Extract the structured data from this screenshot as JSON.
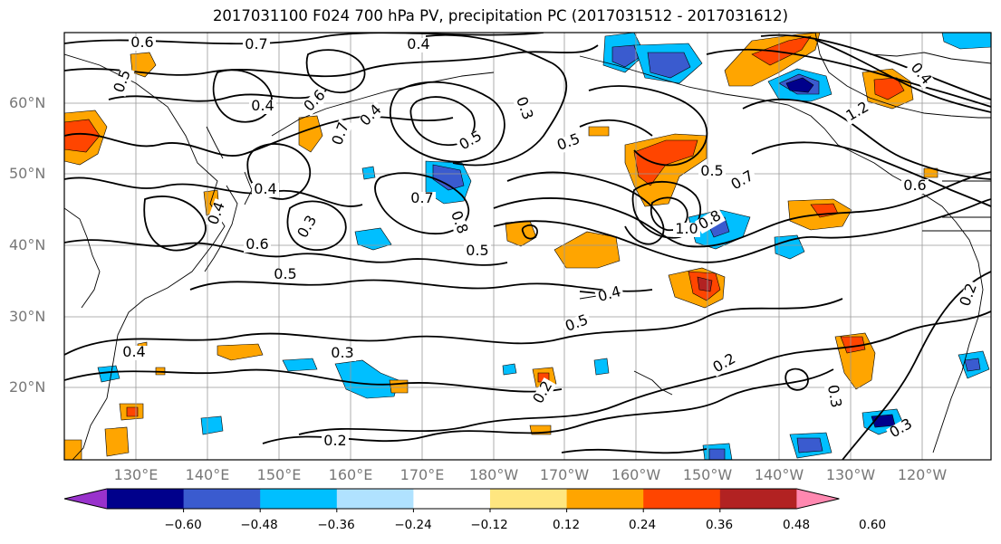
{
  "title": "2017031100 F024 700 hPa PV, precipitation PC (2017031512 - 2017031612)",
  "lat_labels": [
    "60°N",
    "50°N",
    "40°N",
    "30°N",
    "20°N"
  ],
  "lon_labels": [
    "130°E",
    "140°E",
    "150°E",
    "160°E",
    "170°E",
    "180°W",
    "170°W",
    "160°W",
    "150°W",
    "140°W",
    "130°W",
    "120°W"
  ],
  "colorbar": {
    "tick_labels": [
      "−0.60",
      "−0.48",
      "−0.36",
      "−0.24",
      "−0.12",
      "0.12",
      "0.24",
      "0.36",
      "0.48",
      "0.60"
    ],
    "colors": [
      "#9932cc",
      "#00008b",
      "#3a5bcf",
      "#00bfff",
      "#b0e2ff",
      "#ffffff",
      "#ffe680",
      "#ffa500",
      "#ff4500",
      "#b22222",
      "#ff88b0"
    ]
  },
  "contour_labels": [
    "0.6",
    "0.7",
    "0.4",
    "0.5",
    "0.4",
    "0.6",
    "0.7",
    "0.3",
    "0.4",
    "0.5",
    "0.5",
    "0.4",
    "0.7",
    "0.8",
    "0.5",
    "0.6",
    "0.3",
    "0.4",
    "1.0",
    "0.8",
    "0.5",
    "0.7",
    "0.6",
    "0.5",
    "0.4",
    "0.5",
    "0.3",
    "0.4",
    "0.2",
    "0.2",
    "0.3",
    "0.3",
    "0.2",
    "1.2",
    "0.4",
    "0.2"
  ]
}
